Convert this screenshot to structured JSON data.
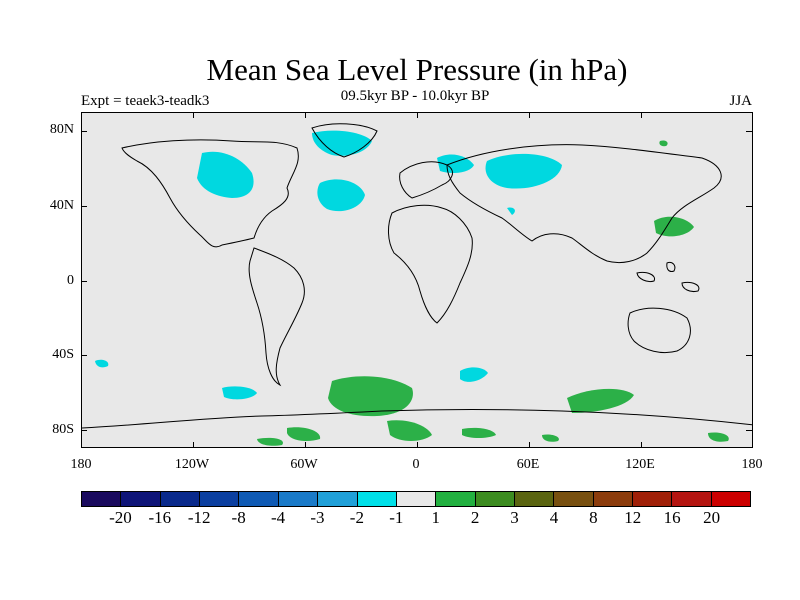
{
  "title": "Mean Sea Level Pressure (in hPa)",
  "experiment_label": "Expt = teaek3-teadk3",
  "period_label": "09.5kyr BP - 10.0kyr BP",
  "season_label": "JJA",
  "lat_ticks": [
    "80N",
    "40N",
    "0",
    "40S",
    "80S"
  ],
  "lon_ticks": [
    "180",
    "120W",
    "60W",
    "0",
    "60E",
    "120E",
    "180"
  ],
  "colorbar": {
    "labels": [
      "-20",
      "-16",
      "-12",
      "-8",
      "-4",
      "-3",
      "-2",
      "-1",
      "1",
      "2",
      "3",
      "4",
      "8",
      "12",
      "16",
      "20"
    ],
    "colors": [
      "#1a0a5e",
      "#0e1478",
      "#0a2a8c",
      "#0b3fa0",
      "#0f5ab4",
      "#1a7ac8",
      "#20a0d8",
      "#00e0e8",
      "#e8e8e8",
      "#22b040",
      "#3c8c20",
      "#5a6410",
      "#785010",
      "#8c3c0c",
      "#a02008",
      "#b41410",
      "#cc0000"
    ]
  },
  "colors": {
    "background": "#e8e8e8",
    "negative_anomaly": "#00d8e0",
    "positive_anomaly": "#2cb048",
    "coastline": "#000000"
  }
}
